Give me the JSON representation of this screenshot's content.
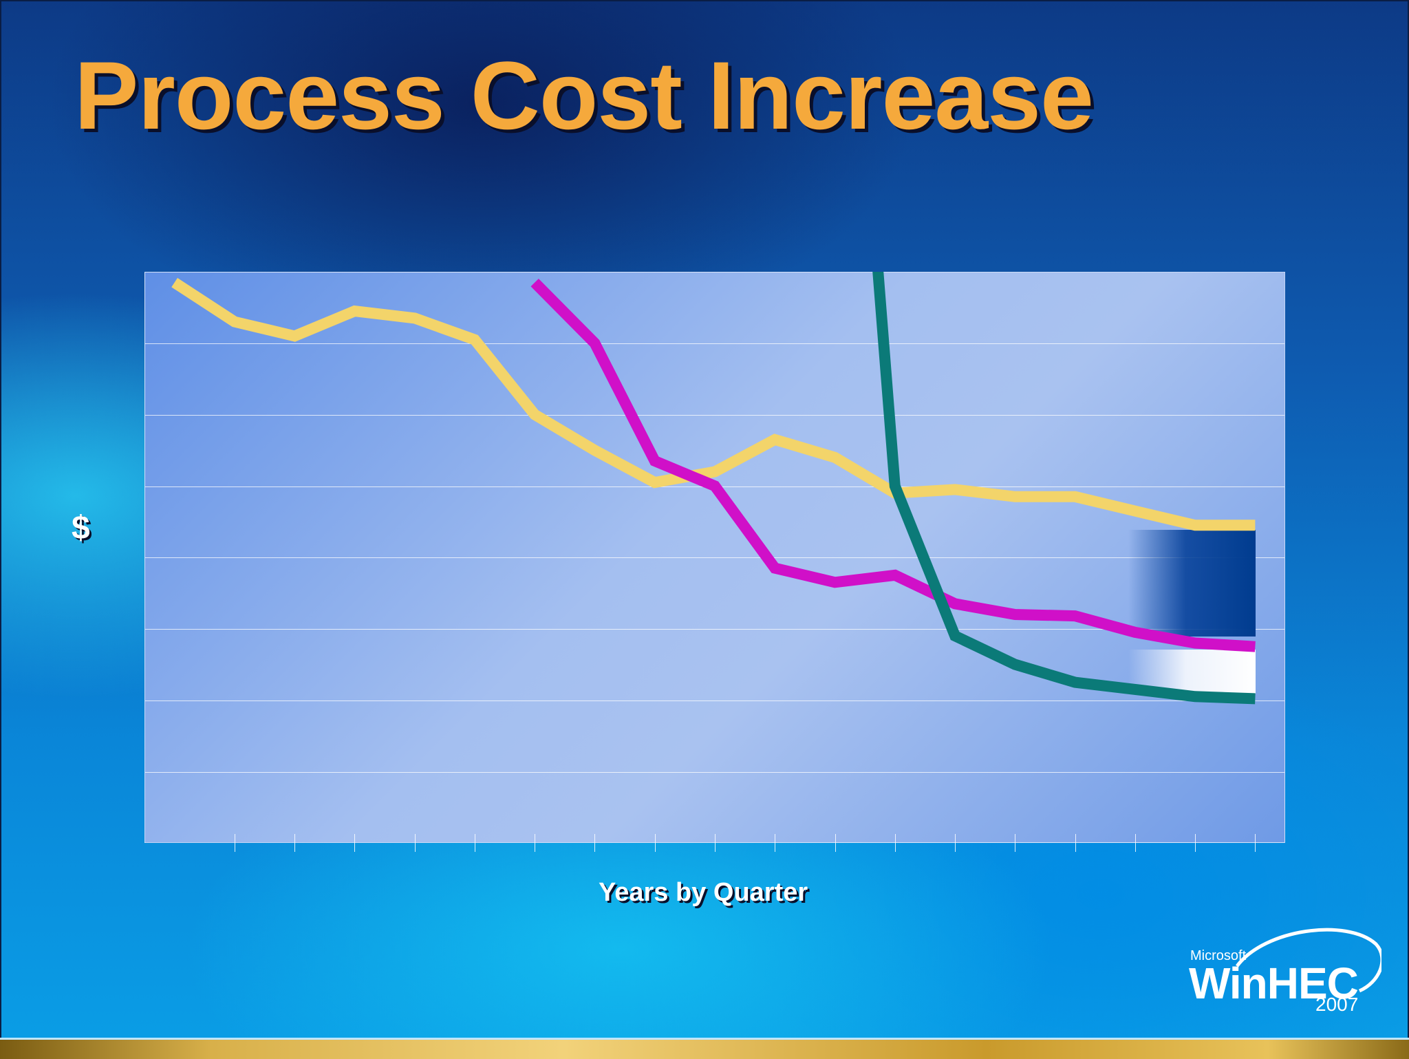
{
  "slide": {
    "title": "Process Cost Increase"
  },
  "logo": {
    "company": "Microsoft",
    "product": "WinHEC",
    "year": "2007"
  },
  "chart_data": {
    "type": "line",
    "title": "",
    "xlabel": "Years by Quarter",
    "ylabel": "$",
    "x": [
      1,
      2,
      3,
      4,
      5,
      6,
      7,
      8,
      9,
      10,
      11,
      12,
      13,
      14,
      15,
      16,
      17,
      18,
      19,
      20
    ],
    "xlim": [
      0.5,
      19.5
    ],
    "ylim": [
      0,
      8
    ],
    "grid": true,
    "legend": "none",
    "series": [
      {
        "color": "#f3d46a",
        "x": [
          1,
          2,
          3,
          4,
          5,
          6,
          7,
          8,
          9,
          10,
          11,
          12,
          13,
          14,
          15,
          16,
          17,
          18,
          19
        ],
        "values": [
          7.85,
          7.3,
          7.1,
          7.45,
          7.35,
          7.05,
          6.0,
          5.5,
          5.05,
          5.2,
          5.65,
          5.4,
          4.9,
          4.95,
          4.85,
          4.85,
          4.65,
          4.45,
          4.45
        ]
      },
      {
        "color": "#d010c8",
        "x": [
          7,
          8,
          9,
          10,
          11,
          12,
          13,
          14,
          15,
          16,
          17,
          18,
          19
        ],
        "values": [
          7.85,
          7.0,
          5.35,
          5.0,
          3.85,
          3.65,
          3.75,
          3.35,
          3.2,
          3.18,
          2.95,
          2.8,
          2.75
        ]
      },
      {
        "color": "#0b7a78",
        "x": [
          12.7,
          13,
          14,
          15,
          16,
          17,
          18,
          19
        ],
        "values": [
          8.2,
          5.0,
          2.9,
          2.5,
          2.25,
          2.15,
          2.05,
          2.02
        ]
      }
    ]
  }
}
